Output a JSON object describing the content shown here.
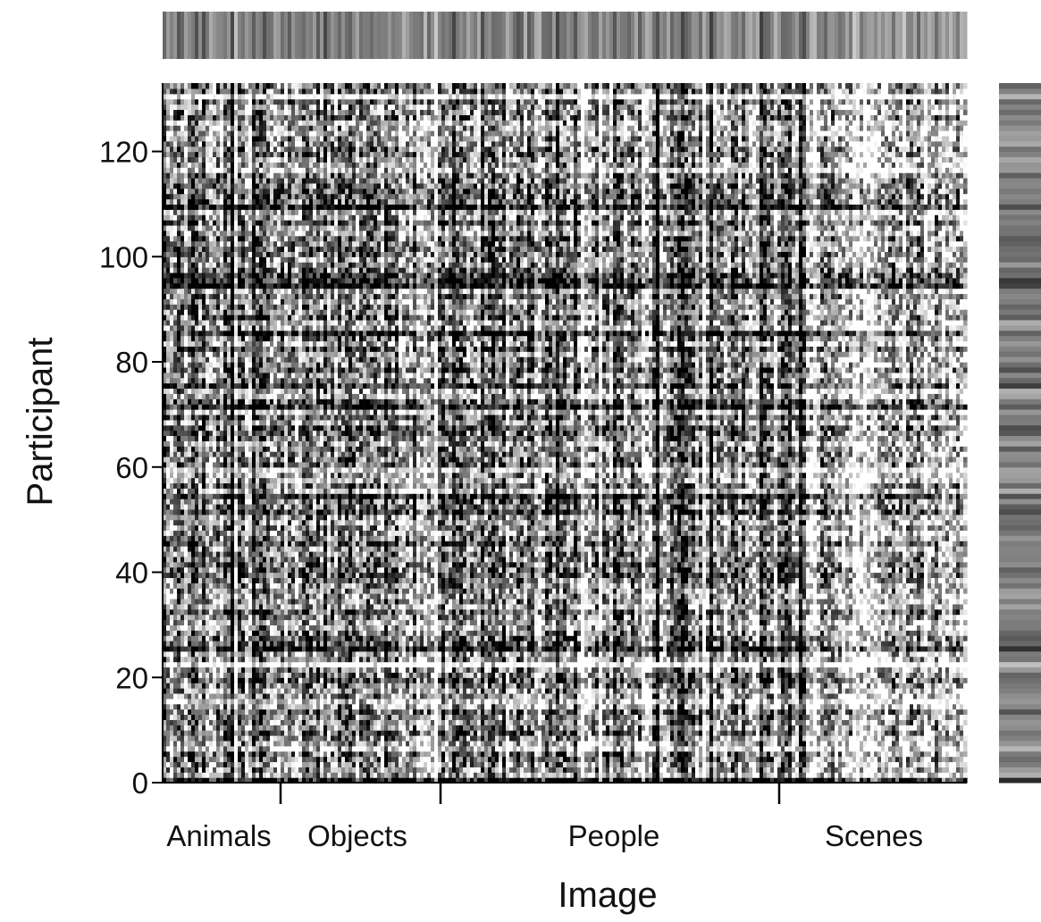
{
  "chart_data": {
    "type": "heatmap",
    "title": "",
    "xlabel": "Image",
    "ylabel": "Participant",
    "y_ticks": [
      0,
      20,
      40,
      60,
      80,
      100,
      120
    ],
    "ylim": [
      0,
      133
    ],
    "colormap": "grayscale",
    "categories": [
      {
        "label": "Animals"
      },
      {
        "label": "Objects"
      },
      {
        "label": "People"
      },
      {
        "label": "Scenes"
      }
    ],
    "category_boundaries": [
      "Animals|Objects",
      "Objects|People",
      "People|Scenes"
    ],
    "marginals": {
      "top": "per-image mean (grayscale bar)",
      "right": "per-participant mean (grayscale bar)"
    }
  },
  "colors": {
    "axis": "#000000",
    "background": "#ffffff"
  }
}
